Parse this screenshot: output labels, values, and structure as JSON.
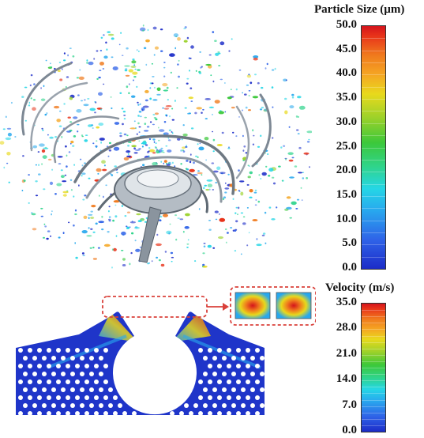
{
  "particle_size_colorbar": {
    "title": "Particle Size (µm)",
    "ticks": [
      "50.0",
      "45.0",
      "40.0",
      "35.0",
      "30.0",
      "25.0",
      "20.0",
      "15.0",
      "10.0",
      "5.0",
      "0.0"
    ]
  },
  "velocity_colorbar": {
    "title": "Velocity (m/s)",
    "ticks": [
      "35.0",
      "28.0",
      "21.0",
      "14.0",
      "7.0",
      "0.0"
    ]
  },
  "colors": {
    "inset_border": "#d9403a",
    "arrow": "#d9403a",
    "cfd_background": "#1f35c9"
  }
}
